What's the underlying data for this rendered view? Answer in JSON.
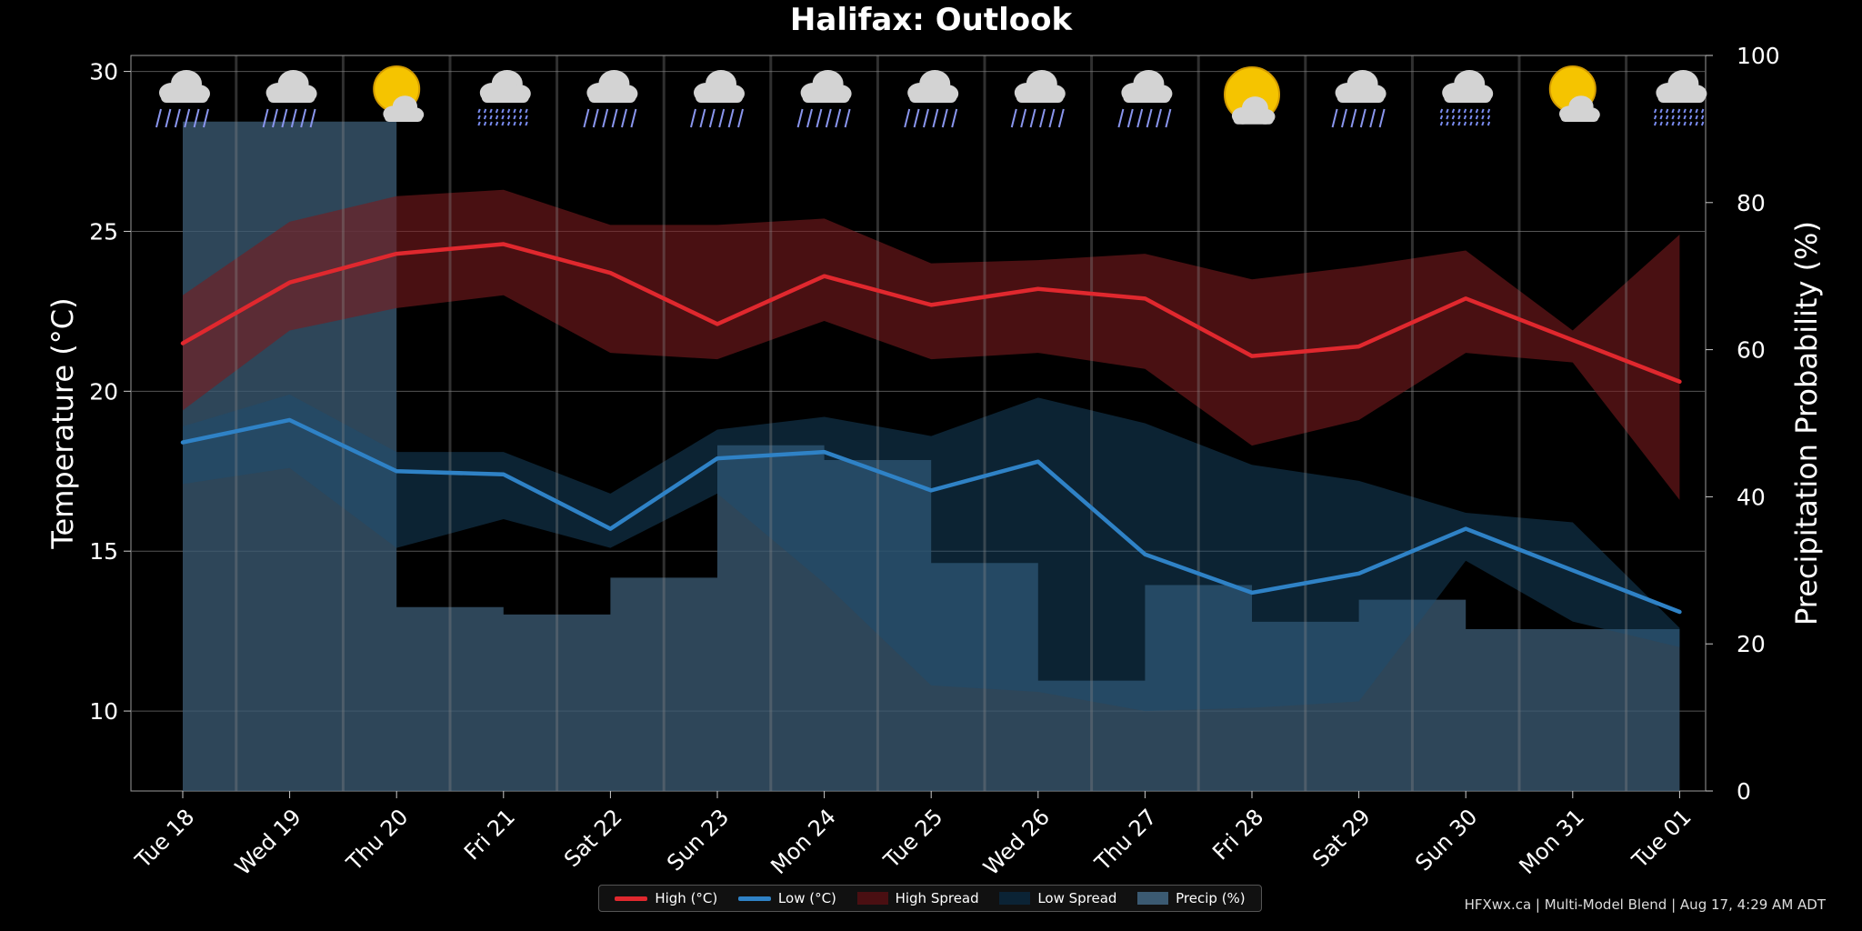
{
  "title": "Halifax: Outlook",
  "footer": "HFXwx.ca | Multi-Model Blend | Aug 17, 4:29 AM ADT",
  "legend": {
    "high": "High (°C)",
    "low": "Low (°C)",
    "high_spread": "High Spread",
    "low_spread": "Low Spread",
    "precip": "Precip (%)"
  },
  "colors": {
    "high": "#e0282e",
    "low": "#2f82c6",
    "high_spread": "#4a0f12",
    "low_spread": "#0b2335",
    "precip": "#3b5a72"
  },
  "chart_data": {
    "type": "line",
    "title": "Halifax: Outlook",
    "ylabel": "Temperature (°C)",
    "y2label": "Precipitation Probability (%)",
    "ylim": [
      7.5,
      30.5
    ],
    "y2lim": [
      0,
      100
    ],
    "yticks": [
      10,
      15,
      20,
      25,
      30
    ],
    "y2ticks": [
      0,
      20,
      40,
      60,
      80,
      100
    ],
    "grid": true,
    "legend_position": "bottom-center",
    "categories": [
      "Tue 18",
      "Wed 19",
      "Thu 20",
      "Fri 21",
      "Sat 22",
      "Sun 23",
      "Mon 24",
      "Tue 25",
      "Wed 26",
      "Thu 27",
      "Fri 28",
      "Sat 29",
      "Sun 30",
      "Mon 31",
      "Tue 01"
    ],
    "icons": [
      "rain-cloud-icon",
      "rain-cloud-icon",
      "partly-sunny-cloud-icon",
      "showers-cloud-icon",
      "rain-cloud-icon",
      "rain-cloud-icon",
      "rain-cloud-icon",
      "rain-cloud-icon",
      "rain-cloud-icon",
      "rain-cloud-icon",
      "sun-cloud-icon",
      "rain-cloud-icon",
      "showers-cloud-icon",
      "partly-sunny-cloud-icon",
      "showers-cloud-icon"
    ],
    "series": [
      {
        "name": "High (°C)",
        "values": [
          21.5,
          23.4,
          24.3,
          24.6,
          23.7,
          22.1,
          23.6,
          22.7,
          23.2,
          22.9,
          21.1,
          21.4,
          22.9,
          21.6,
          20.3
        ]
      },
      {
        "name": "Low (°C)",
        "values": [
          18.4,
          19.1,
          17.5,
          17.4,
          15.7,
          17.9,
          18.1,
          16.9,
          17.8,
          14.9,
          13.7,
          14.3,
          15.7,
          14.4,
          13.1
        ]
      }
    ],
    "high_spread": {
      "upper": [
        23.0,
        25.3,
        26.1,
        26.3,
        25.2,
        25.2,
        25.4,
        24.0,
        24.1,
        24.3,
        23.5,
        23.9,
        24.4,
        21.9,
        24.9
      ],
      "lower": [
        19.4,
        21.9,
        22.6,
        23.0,
        21.2,
        21.0,
        22.2,
        21.0,
        21.2,
        20.7,
        18.3,
        19.1,
        21.2,
        20.9,
        16.6
      ]
    },
    "low_spread": {
      "upper": [
        18.9,
        19.9,
        18.1,
        18.1,
        16.8,
        18.8,
        19.2,
        18.6,
        19.8,
        19.0,
        17.7,
        17.2,
        16.2,
        15.9,
        12.6
      ],
      "lower": [
        17.1,
        17.6,
        15.1,
        16.0,
        15.1,
        16.8,
        14.0,
        10.8,
        10.6,
        10.0,
        10.1,
        10.3,
        14.7,
        12.8,
        12.0
      ]
    },
    "precip": [
      91,
      91,
      25,
      24,
      29,
      47,
      45,
      31,
      15,
      28,
      23,
      26,
      22,
      22,
      22
    ]
  }
}
